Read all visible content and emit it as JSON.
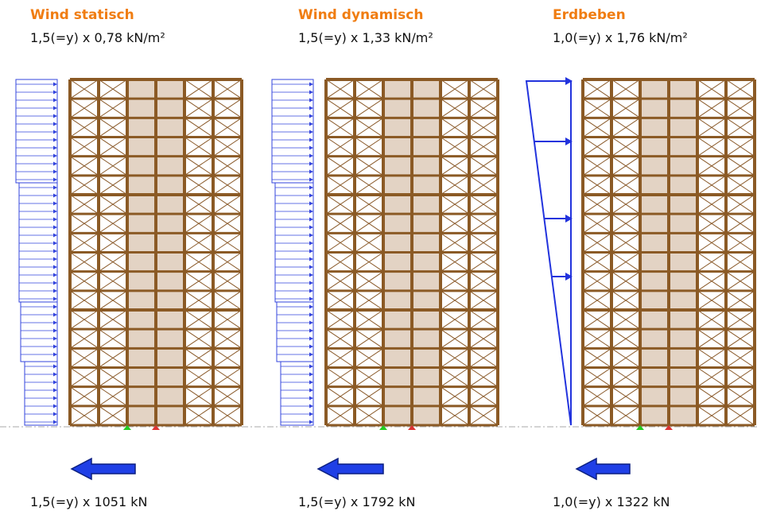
{
  "panels": [
    {
      "title": "Wind statisch",
      "load": "1,5(=y) x 0,78 kN/m²",
      "result": "1,5(=y) x 1051 kN"
    },
    {
      "title": "Wind dynamisch",
      "load": "1,5(=y) x 1,33 kN/m²",
      "result": "1,5(=y) x 1792 kN"
    },
    {
      "title": "Erdbeben",
      "load": "1,0(=y) x 1,76 kN/m²",
      "result": "1,0(=y) x 1322 kN"
    }
  ]
}
